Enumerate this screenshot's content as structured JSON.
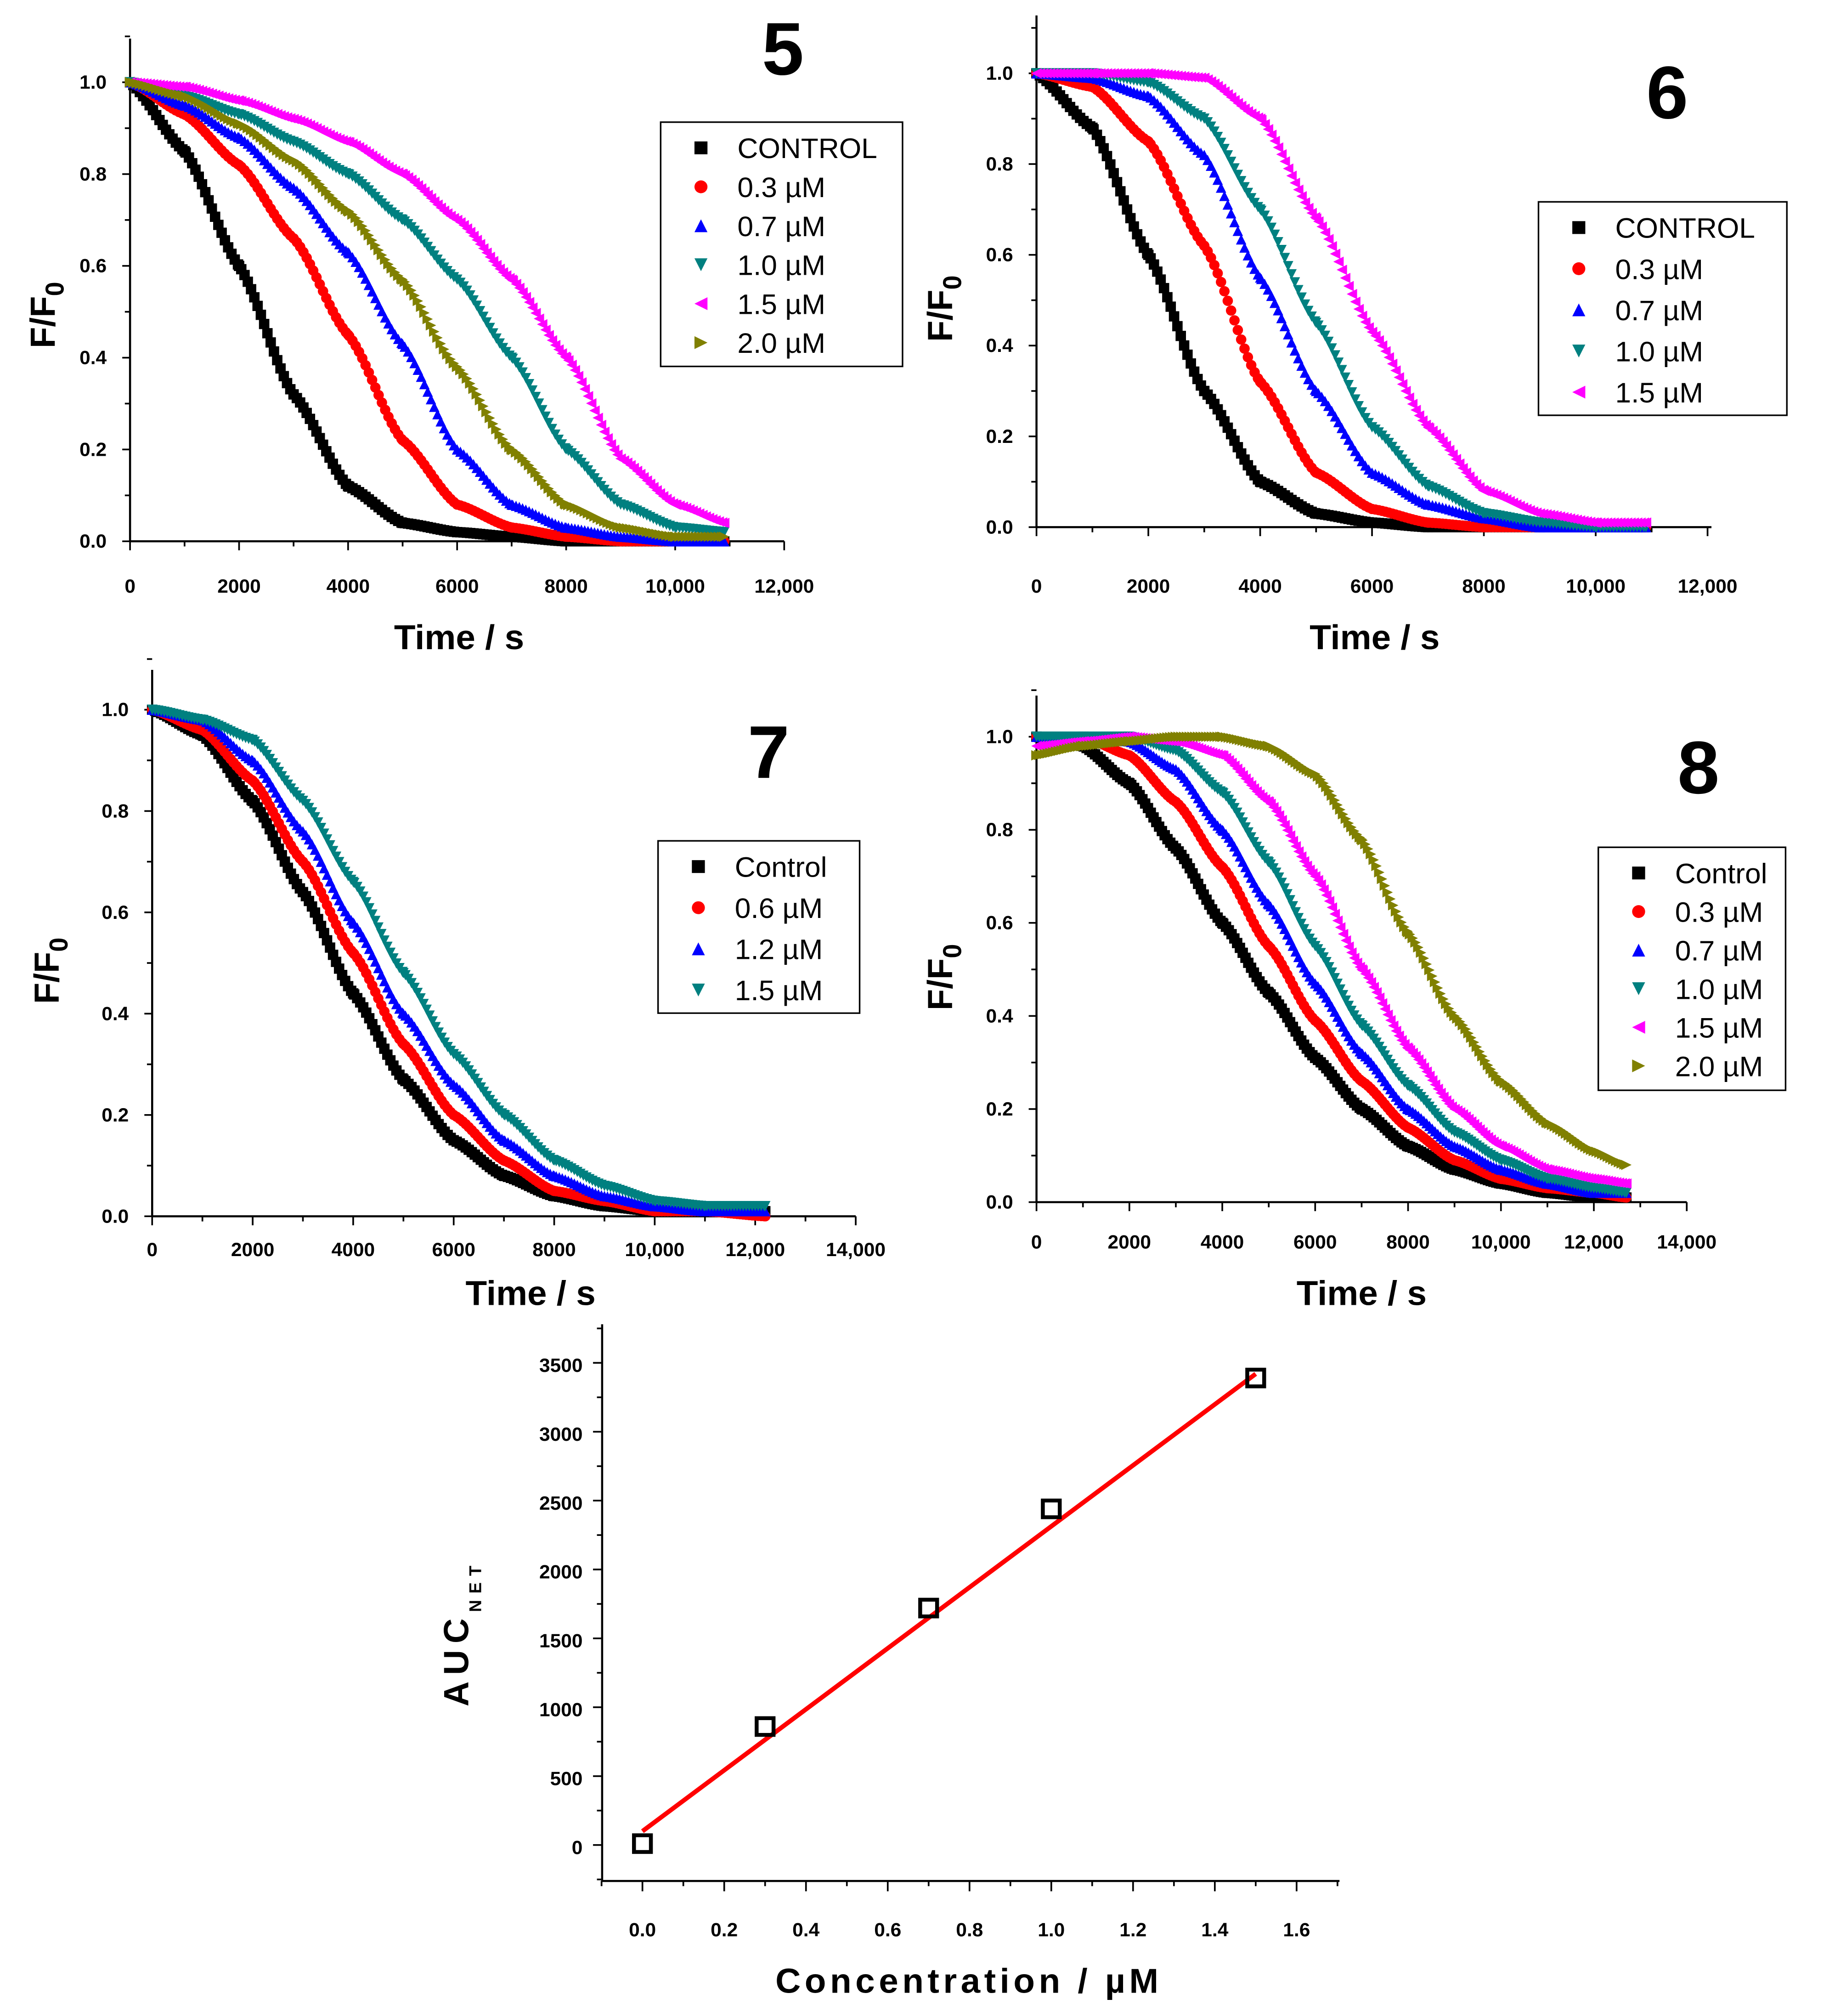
{
  "chart_data": [
    {
      "type": "scatter",
      "panel_label": "5",
      "xlabel": "Time / s",
      "ylabel": "F/F",
      "ylabel_sub": "0",
      "xlim": [
        0,
        12000
      ],
      "ylim": [
        0,
        1.1
      ],
      "xticks": [
        "0",
        "2000",
        "4000",
        "6000",
        "8000",
        "10,000",
        "12,000"
      ],
      "yticks": [
        "0.0",
        "0.2",
        "0.4",
        "0.6",
        "0.8",
        "1.0"
      ],
      "legend_position": "upper-right",
      "x": [
        0,
        1000,
        2000,
        3000,
        4000,
        5000,
        6000,
        7000,
        8000,
        9000,
        10000,
        10900
      ],
      "series": [
        {
          "name": "CONTROL",
          "marker": "square",
          "color": "#000000",
          "values": [
            1,
            0.85,
            0.6,
            0.32,
            0.12,
            0.04,
            0.02,
            0.01,
            0,
            0,
            0,
            0
          ]
        },
        {
          "name": "0.3 µM",
          "marker": "circle",
          "color": "#ff0000",
          "values": [
            1,
            0.93,
            0.82,
            0.66,
            0.45,
            0.22,
            0.08,
            0.03,
            0.01,
            0,
            0,
            0
          ]
        },
        {
          "name": "0.7 µM",
          "marker": "triangle-up",
          "color": "#0000ff",
          "values": [
            1,
            0.95,
            0.88,
            0.77,
            0.63,
            0.43,
            0.2,
            0.08,
            0.03,
            0.01,
            0,
            0
          ]
        },
        {
          "name": "1.0 µM",
          "marker": "triangle-down",
          "color": "#008080",
          "values": [
            1,
            0.97,
            0.93,
            0.87,
            0.8,
            0.7,
            0.57,
            0.4,
            0.2,
            0.08,
            0.03,
            0.02
          ]
        },
        {
          "name": "1.5 µM",
          "marker": "triangle-left",
          "color": "#ff00ff",
          "values": [
            1,
            0.99,
            0.96,
            0.92,
            0.87,
            0.8,
            0.7,
            0.57,
            0.4,
            0.18,
            0.08,
            0.04
          ]
        },
        {
          "name": "2.0 µM",
          "marker": "triangle-right",
          "color": "#808000",
          "values": [
            1,
            0.97,
            0.91,
            0.83,
            0.72,
            0.57,
            0.38,
            0.2,
            0.08,
            0.03,
            0.01,
            0.01
          ]
        }
      ]
    },
    {
      "type": "scatter",
      "panel_label": "6",
      "xlabel": "Time / s",
      "ylabel": "F/F",
      "ylabel_sub": "0",
      "xlim": [
        0,
        12000
      ],
      "ylim": [
        0,
        1.1
      ],
      "xticks": [
        "0",
        "2000",
        "4000",
        "6000",
        "8000",
        "10,000",
        "12,000"
      ],
      "yticks": [
        "0.0",
        "0.2",
        "0.4",
        "0.6",
        "0.8",
        "1.0"
      ],
      "legend_position": "right",
      "x": [
        0,
        1000,
        2000,
        3000,
        4000,
        5000,
        6000,
        7000,
        8000,
        9000,
        10000,
        10900
      ],
      "series": [
        {
          "name": "CONTROL",
          "marker": "square",
          "color": "#000000",
          "values": [
            1,
            0.88,
            0.6,
            0.3,
            0.1,
            0.03,
            0.01,
            0,
            0,
            0,
            0,
            0
          ]
        },
        {
          "name": "0.3 µM",
          "marker": "circle",
          "color": "#ff0000",
          "values": [
            1,
            0.97,
            0.85,
            0.62,
            0.32,
            0.12,
            0.04,
            0.01,
            0,
            0,
            0,
            0
          ]
        },
        {
          "name": "0.7 µM",
          "marker": "triangle-up",
          "color": "#0000ff",
          "values": [
            1,
            0.99,
            0.95,
            0.82,
            0.55,
            0.3,
            0.12,
            0.05,
            0.02,
            0,
            0,
            0
          ]
        },
        {
          "name": "1.0 µM",
          "marker": "triangle-down",
          "color": "#008080",
          "values": [
            1,
            1,
            0.98,
            0.9,
            0.7,
            0.45,
            0.22,
            0.09,
            0.03,
            0.01,
            0,
            0
          ]
        },
        {
          "name": "1.5 µM",
          "marker": "triangle-left",
          "color": "#ff00ff",
          "values": [
            1,
            1,
            1,
            0.99,
            0.9,
            0.68,
            0.43,
            0.22,
            0.08,
            0.03,
            0.01,
            0.01
          ]
        }
      ]
    },
    {
      "type": "scatter",
      "panel_label": "7",
      "xlabel": "Time / s",
      "ylabel": "F/F",
      "ylabel_sub": "0",
      "xlim": [
        0,
        14000
      ],
      "ylim": [
        0,
        1.1
      ],
      "xticks": [
        "0",
        "2000",
        "4000",
        "6000",
        "8000",
        "10,000",
        "12,000",
        "14,000"
      ],
      "yticks": [
        "0.0",
        "0.2",
        "0.4",
        "0.6",
        "0.8",
        "1.0"
      ],
      "legend_position": "right",
      "x": [
        0,
        1000,
        2000,
        3000,
        4000,
        5000,
        6000,
        7000,
        8000,
        9000,
        10000,
        11000,
        12200
      ],
      "series": [
        {
          "name": "Control",
          "marker": "square",
          "color": "#000000",
          "values": [
            1,
            0.95,
            0.82,
            0.64,
            0.44,
            0.27,
            0.15,
            0.08,
            0.04,
            0.02,
            0.01,
            0.01,
            0.01
          ]
        },
        {
          "name": "0.6 µM",
          "marker": "circle",
          "color": "#ff0000",
          "values": [
            1,
            0.96,
            0.86,
            0.7,
            0.52,
            0.34,
            0.2,
            0.11,
            0.05,
            0.03,
            0.01,
            0.01,
            0
          ]
        },
        {
          "name": "1.2 µM",
          "marker": "triangle-up",
          "color": "#0000ff",
          "values": [
            1,
            0.98,
            0.9,
            0.76,
            0.58,
            0.4,
            0.26,
            0.15,
            0.08,
            0.04,
            0.02,
            0.01,
            0.01
          ]
        },
        {
          "name": "1.5 µM",
          "marker": "triangle-down",
          "color": "#008080",
          "values": [
            1,
            0.98,
            0.94,
            0.82,
            0.66,
            0.48,
            0.32,
            0.2,
            0.11,
            0.06,
            0.03,
            0.02,
            0.02
          ]
        }
      ]
    },
    {
      "type": "scatter",
      "panel_label": "8",
      "xlabel": "Time / s",
      "ylabel": "F/F",
      "ylabel_sub": "0",
      "xlim": [
        0,
        14000
      ],
      "ylim": [
        0,
        1.1
      ],
      "xticks": [
        "0",
        "2000",
        "4000",
        "6000",
        "8000",
        "10,000",
        "12,000",
        "14,000"
      ],
      "yticks": [
        "0.0",
        "0.2",
        "0.4",
        "0.6",
        "0.8",
        "1.0"
      ],
      "legend_position": "right",
      "x": [
        0,
        1000,
        2000,
        3000,
        4000,
        5000,
        6000,
        7000,
        8000,
        9000,
        10000,
        11000,
        12000,
        12700
      ],
      "series": [
        {
          "name": "Control",
          "marker": "square",
          "color": "#000000",
          "values": [
            1,
            0.98,
            0.9,
            0.76,
            0.6,
            0.45,
            0.31,
            0.2,
            0.12,
            0.07,
            0.04,
            0.02,
            0.01,
            0.01
          ]
        },
        {
          "name": "0.3 µM",
          "marker": "circle",
          "color": "#ff0000",
          "values": [
            1,
            1,
            0.96,
            0.86,
            0.72,
            0.55,
            0.39,
            0.26,
            0.16,
            0.09,
            0.05,
            0.03,
            0.02,
            0.01
          ]
        },
        {
          "name": "0.7 µM",
          "marker": "triangle-up",
          "color": "#0000ff",
          "values": [
            1,
            1,
            0.99,
            0.93,
            0.8,
            0.64,
            0.47,
            0.32,
            0.2,
            0.12,
            0.07,
            0.04,
            0.02,
            0.02
          ]
        },
        {
          "name": "1.0 µM",
          "marker": "triangle-down",
          "color": "#008080",
          "values": [
            1,
            1,
            1,
            0.97,
            0.88,
            0.73,
            0.55,
            0.38,
            0.25,
            0.15,
            0.09,
            0.05,
            0.03,
            0.02
          ]
        },
        {
          "name": "1.5 µM",
          "marker": "triangle-left",
          "color": "#ff00ff",
          "values": [
            0.98,
            0.99,
            1,
            0.99,
            0.96,
            0.86,
            0.7,
            0.5,
            0.33,
            0.2,
            0.12,
            0.07,
            0.05,
            0.04
          ]
        },
        {
          "name": "2.0 µM",
          "marker": "triangle-right",
          "color": "#808000",
          "values": [
            0.96,
            0.98,
            0.99,
            1,
            1,
            0.98,
            0.92,
            0.78,
            0.58,
            0.4,
            0.26,
            0.17,
            0.11,
            0.08
          ]
        }
      ]
    },
    {
      "type": "scatter",
      "xlabel": "Concentration / µM",
      "ylabel": "AUC",
      "ylabel_sub": "NET",
      "xlim": [
        -0.1,
        1.7
      ],
      "ylim": [
        -260,
        3790
      ],
      "xticks": [
        "0.0",
        "0.2",
        "0.4",
        "0.6",
        "0.8",
        "1.0",
        "1.2",
        "1.4",
        "1.6"
      ],
      "yticks": [
        "0",
        "500",
        "1000",
        "1500",
        "2000",
        "2500",
        "3000",
        "3500"
      ],
      "x": [
        0,
        0.3,
        0.7,
        1.0,
        1.5
      ],
      "series": [
        {
          "marker": "open-square",
          "color": "#000000",
          "values": [
            10,
            860,
            1720,
            2440,
            3390
          ]
        }
      ],
      "fit_line": {
        "color": "#ff0000",
        "x": [
          0,
          1.5
        ],
        "values": [
          100,
          3420
        ]
      }
    }
  ]
}
